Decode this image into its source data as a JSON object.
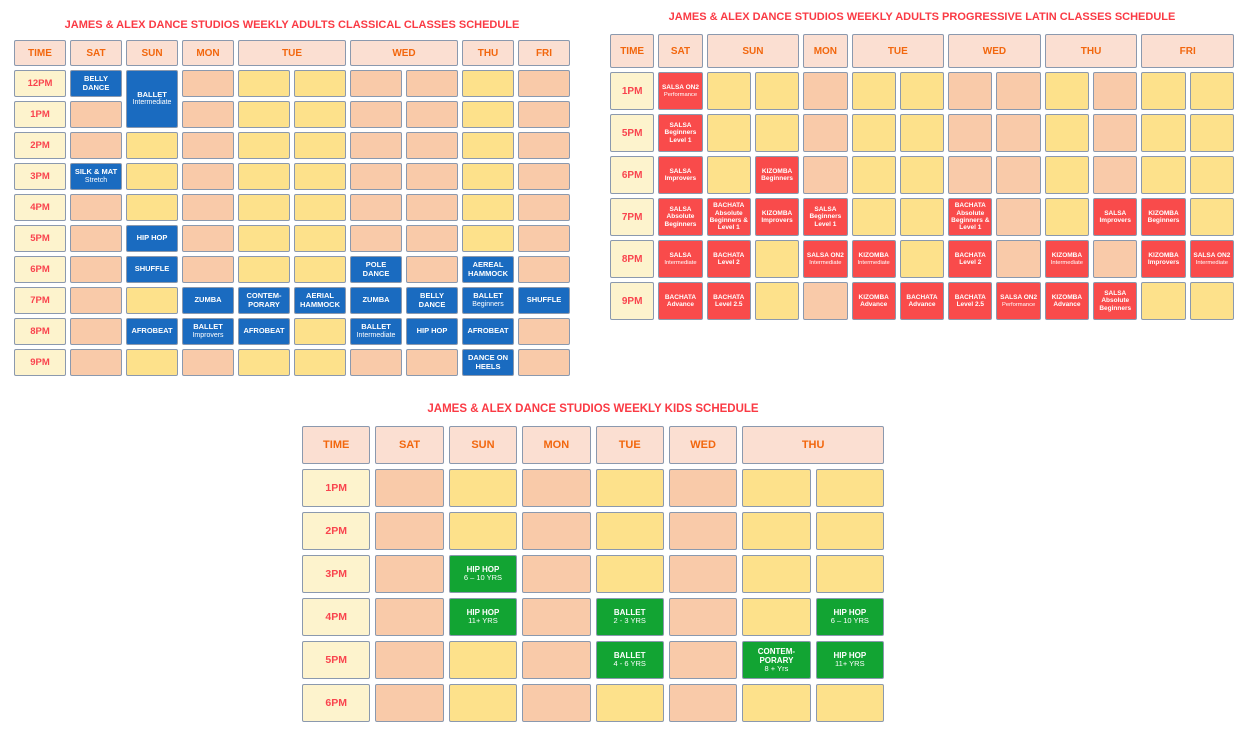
{
  "palette": {
    "title_red": "#fa3a44",
    "header_bg": "#fbdfd2",
    "header_text": "#f2670e",
    "time_bg": "#fdf3cd",
    "time_text": "#f9444e",
    "empty_peach": "#f9caa9",
    "empty_yellow": "#fde18b",
    "classical_blue": "#1a6bc0",
    "latin_red": "#f94b4b",
    "kids_green": "#12a433",
    "cell_border": "#8b99ae",
    "page_bg": "#ffffff"
  },
  "tables": [
    {
      "id": "classical",
      "title": "JAMES & ALEX DANCE STUDIOS WEEKLY ADULTS CLASSICAL CLASSES SCHEDULE",
      "time_header": "TIME",
      "day_headers": [
        {
          "label": "SAT",
          "span": 1
        },
        {
          "label": "SUN",
          "span": 1
        },
        {
          "label": "MON",
          "span": 1
        },
        {
          "label": "TUE",
          "span": 2
        },
        {
          "label": "WED",
          "span": 2
        },
        {
          "label": "THU",
          "span": 1
        },
        {
          "label": "FRI",
          "span": 1
        }
      ],
      "rows": [
        {
          "time": "12PM",
          "cells": [
            {
              "t": "BELLY DANCE"
            },
            {
              "t": "BALLET",
              "s": "Intermediate",
              "rs": 2
            },
            "p",
            "y",
            "y",
            "p",
            "p",
            "y",
            "p"
          ]
        },
        {
          "time": "1PM",
          "cells": [
            "p",
            "p",
            "y",
            "y",
            "p",
            "p",
            "y",
            "p"
          ]
        },
        {
          "time": "2PM",
          "cells": [
            "p",
            "y",
            "p",
            "y",
            "y",
            "p",
            "p",
            "y",
            "p"
          ]
        },
        {
          "time": "3PM",
          "cells": [
            {
              "t": "SILK & MAT",
              "s": "Stretch"
            },
            "y",
            "p",
            "y",
            "y",
            "p",
            "p",
            "y",
            "p"
          ]
        },
        {
          "time": "4PM",
          "cells": [
            "p",
            "y",
            "p",
            "y",
            "y",
            "p",
            "p",
            "y",
            "p"
          ]
        },
        {
          "time": "5PM",
          "cells": [
            "p",
            {
              "t": "HIP HOP"
            },
            "p",
            "y",
            "y",
            "p",
            "p",
            "y",
            "p"
          ]
        },
        {
          "time": "6PM",
          "cells": [
            "p",
            {
              "t": "SHUFFLE"
            },
            "p",
            "y",
            "y",
            {
              "t": "POLE DANCE"
            },
            "p",
            {
              "t": "AEREAL HAMMOCK"
            },
            "p"
          ]
        },
        {
          "time": "7PM",
          "cells": [
            "p",
            "y",
            {
              "t": "ZUMBA"
            },
            {
              "t": "CONTEM-PORARY"
            },
            {
              "t": "AERIAL HAMMOCK"
            },
            {
              "t": "ZUMBA"
            },
            {
              "t": "BELLY DANCE"
            },
            {
              "t": "BALLET",
              "s": "Beginners"
            },
            {
              "t": "SHUFFLE"
            }
          ]
        },
        {
          "time": "8PM",
          "cells": [
            "p",
            {
              "t": "AFROBEAT"
            },
            {
              "t": "BALLET",
              "s": "Improvers"
            },
            {
              "t": "AFROBEAT"
            },
            "y",
            {
              "t": "BALLET",
              "s": "Intermediate"
            },
            {
              "t": "HIP HOP"
            },
            {
              "t": "AFROBEAT"
            },
            "p"
          ]
        },
        {
          "time": "9PM",
          "cells": [
            "p",
            "y",
            "p",
            "y",
            "y",
            "p",
            "p",
            {
              "t": "DANCE ON HEELS"
            },
            "p"
          ]
        }
      ]
    },
    {
      "id": "latin",
      "title": "JAMES & ALEX DANCE STUDIOS WEEKLY ADULTS PROGRESSIVE LATIN CLASSES SCHEDULE",
      "time_header": "TIME",
      "day_headers": [
        {
          "label": "SAT",
          "span": 1
        },
        {
          "label": "SUN",
          "span": 2
        },
        {
          "label": "MON",
          "span": 1
        },
        {
          "label": "TUE",
          "span": 2
        },
        {
          "label": "WED",
          "span": 2
        },
        {
          "label": "THU",
          "span": 2
        },
        {
          "label": "FRI",
          "span": 2
        }
      ],
      "rows": [
        {
          "time": "1PM",
          "cells": [
            {
              "t": "SALSA ON2",
              "s": "Performance"
            },
            "y",
            "y",
            "p",
            "y",
            "y",
            "p",
            "p",
            "y",
            "p",
            "y",
            "y"
          ]
        },
        {
          "time": "5PM",
          "cells": [
            {
              "t": "SALSA Beginners Level 1"
            },
            "y",
            "y",
            "p",
            "y",
            "y",
            "p",
            "p",
            "y",
            "p",
            "y",
            "y"
          ]
        },
        {
          "time": "6PM",
          "cells": [
            {
              "t": "SALSA Improvers"
            },
            "y",
            {
              "t": "KIZOMBA Beginners"
            },
            "p",
            "y",
            "y",
            "p",
            "p",
            "y",
            "p",
            "y",
            "y"
          ]
        },
        {
          "time": "7PM",
          "cells": [
            {
              "t": "SALSA Absolute Beginners"
            },
            {
              "t": "BACHATA Absolute Beginners & Level 1"
            },
            {
              "t": "KIZOMBA Improvers"
            },
            {
              "t": "SALSA Beginners Level 1"
            },
            "y",
            "y",
            {
              "t": "BACHATA Absolute Beginners & Level 1"
            },
            "p",
            "y",
            {
              "t": "SALSA Improvers"
            },
            {
              "t": "KIZOMBA Beginners"
            },
            "y"
          ]
        },
        {
          "time": "8PM",
          "cells": [
            {
              "t": "SALSA",
              "s": "Intermediate"
            },
            {
              "t": "BACHATA Level 2"
            },
            "y",
            {
              "t": "SALSA ON2",
              "s": "Intermediate"
            },
            {
              "t": "KIZOMBA",
              "s": "Intermediate"
            },
            "y",
            {
              "t": "BACHATA Level 2"
            },
            "p",
            {
              "t": "KIZOMBA",
              "s": "Intermediate"
            },
            "p",
            {
              "t": "KIZOMBA Improvers"
            },
            {
              "t": "SALSA ON2",
              "s": "Intermediate"
            }
          ]
        },
        {
          "time": "9PM",
          "cells": [
            {
              "t": "BACHATA Advance"
            },
            {
              "t": "BACHATA Level 2.5"
            },
            "y",
            "p",
            {
              "t": "KIZOMBA Advance"
            },
            {
              "t": "BACHATA Advance"
            },
            {
              "t": "BACHATA Level 2.5"
            },
            {
              "t": "SALSA ON2",
              "s": "Performance"
            },
            {
              "t": "KIZOMBA Advance"
            },
            {
              "t": "SALSA Absolute Beginners"
            },
            "y",
            "y"
          ]
        }
      ]
    },
    {
      "id": "kids",
      "title": "JAMES & ALEX DANCE STUDIOS WEEKLY KIDS SCHEDULE",
      "time_header": "TIME",
      "day_headers": [
        {
          "label": "SAT",
          "span": 1
        },
        {
          "label": "SUN",
          "span": 1
        },
        {
          "label": "MON",
          "span": 1
        },
        {
          "label": "TUE",
          "span": 1
        },
        {
          "label": "WED",
          "span": 1
        },
        {
          "label": "THU",
          "span": 2
        }
      ],
      "rows": [
        {
          "time": "1PM",
          "cells": [
            "p",
            "y",
            "p",
            "y",
            "p",
            "y",
            "y"
          ]
        },
        {
          "time": "2PM",
          "cells": [
            "p",
            "y",
            "p",
            "y",
            "p",
            "y",
            "y"
          ]
        },
        {
          "time": "3PM",
          "cells": [
            "p",
            {
              "t": "HIP HOP",
              "s": "6 – 10 YRS"
            },
            "p",
            "y",
            "p",
            "y",
            "y"
          ]
        },
        {
          "time": "4PM",
          "cells": [
            "p",
            {
              "t": "HIP HOP",
              "s": "11+ YRS"
            },
            "p",
            {
              "t": "BALLET",
              "s": "2 - 3 YRS"
            },
            "p",
            "y",
            {
              "t": "HIP HOP",
              "s": "6 – 10 YRS"
            }
          ]
        },
        {
          "time": "5PM",
          "cells": [
            "p",
            "y",
            "p",
            {
              "t": "BALLET",
              "s": "4 - 6 YRS"
            },
            "p",
            {
              "t": "CONTEM-PORARY",
              "s": "8 + Yrs"
            },
            {
              "t": "HIP HOP",
              "s": "11+ YRS"
            }
          ]
        },
        {
          "time": "6PM",
          "cells": [
            "p",
            "y",
            "p",
            "y",
            "p",
            "y",
            "y"
          ]
        }
      ]
    }
  ]
}
